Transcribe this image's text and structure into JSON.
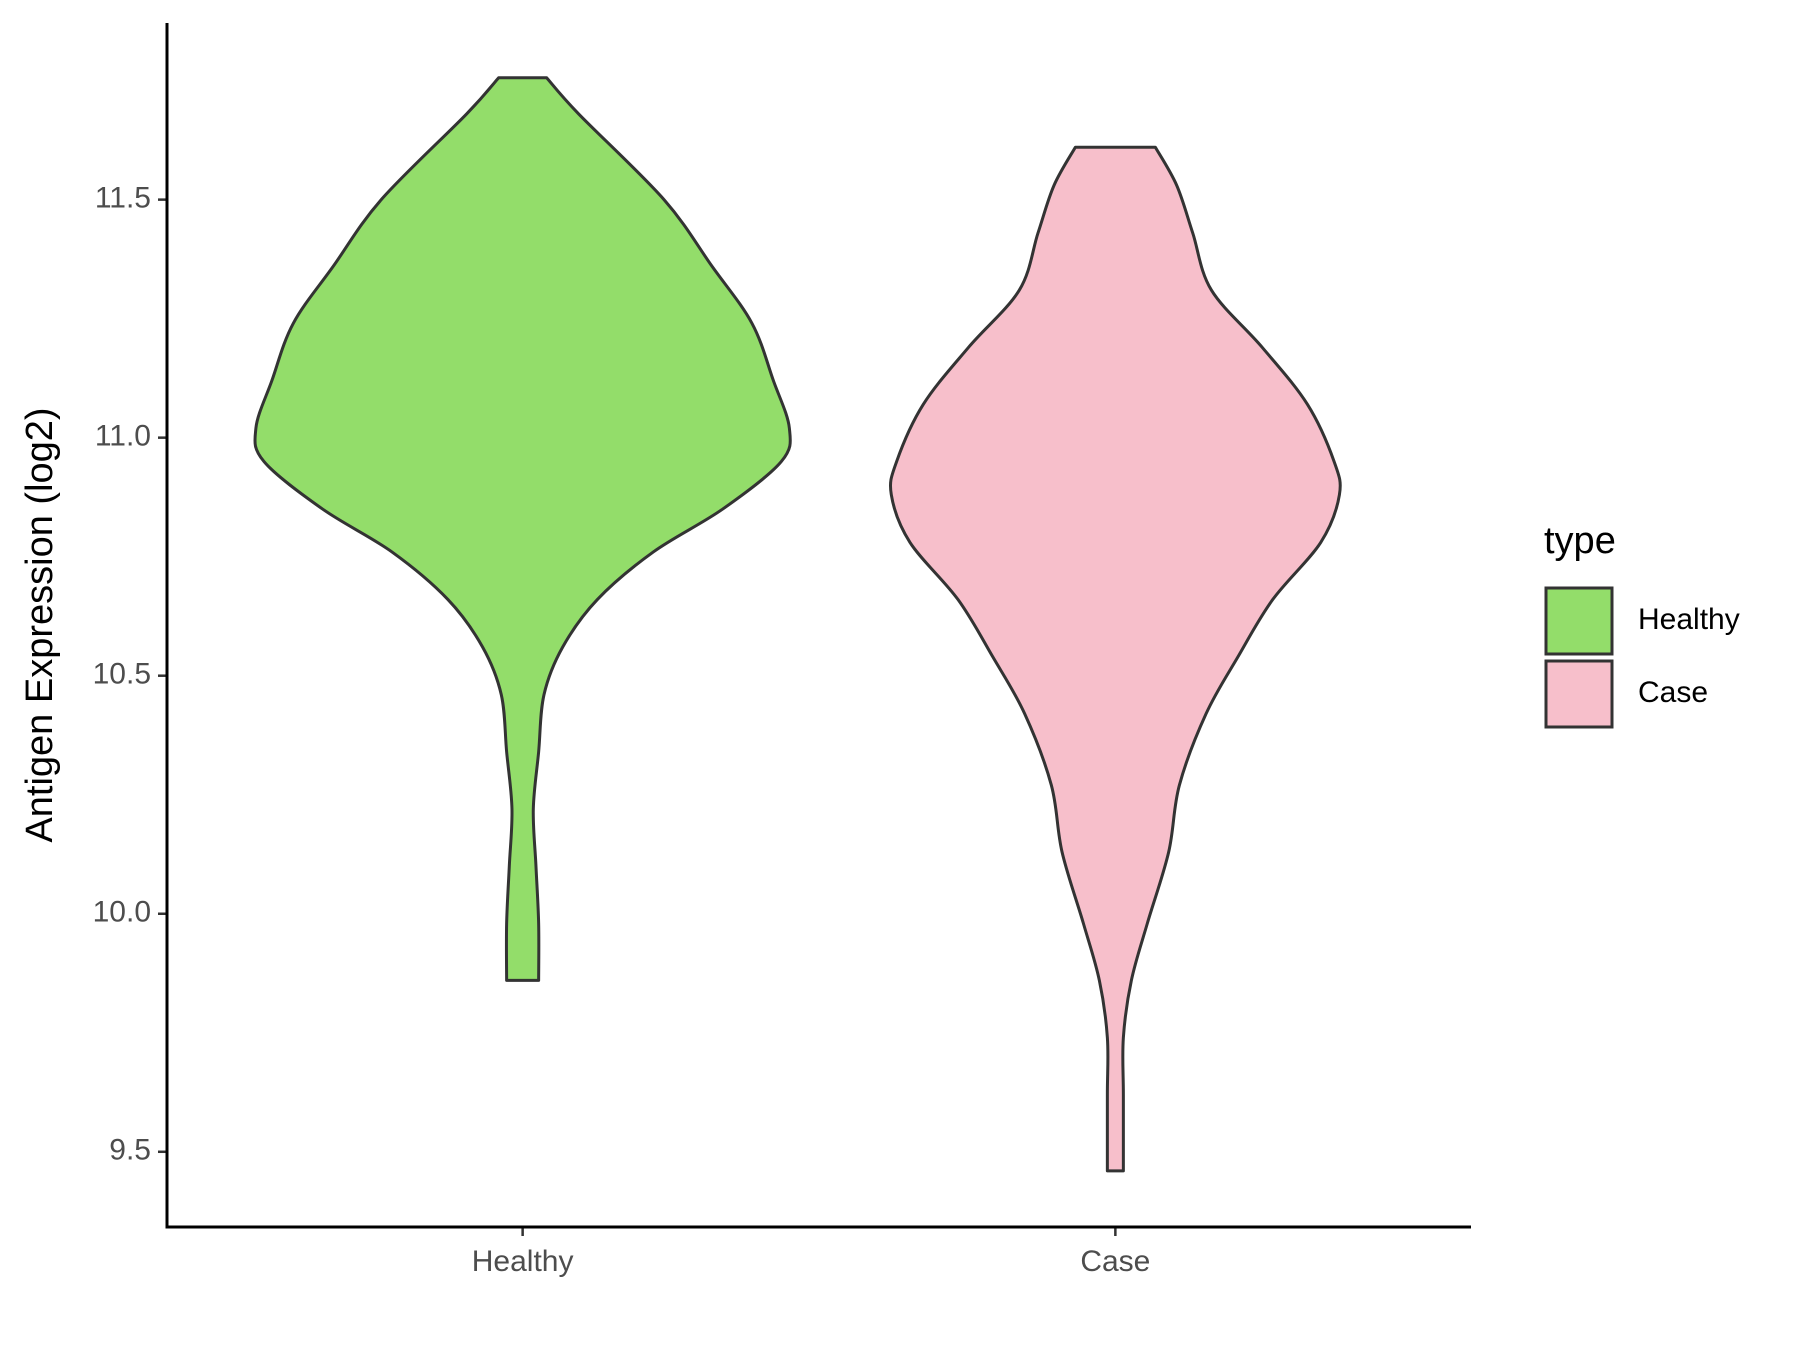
{
  "chart_data": {
    "type": "violin",
    "y_label": "Antigen Expression (log2)",
    "categories": [
      "Healthy",
      "Case"
    ],
    "legend_title": "type",
    "legend": "right",
    "series": [
      {
        "name": "Healthy",
        "color": "#93dd6a",
        "y": [
          11.756,
          11.68,
          11.5,
          11.36,
          11.24,
          11.12,
          11.02,
          10.95,
          10.85,
          10.76,
          10.66,
          10.56,
          10.46,
          10.34,
          10.22,
          10.1,
          9.98,
          9.86
        ],
        "density": [
          0.09,
          0.21,
          0.53,
          0.71,
          0.86,
          0.94,
          1.0,
          0.97,
          0.75,
          0.49,
          0.28,
          0.15,
          0.08,
          0.06,
          0.04,
          0.05,
          0.06,
          0.06
        ]
      },
      {
        "name": "Case",
        "color": "#f7bfcb",
        "y": [
          11.61,
          11.53,
          11.43,
          11.31,
          11.19,
          11.07,
          10.95,
          10.88,
          10.78,
          10.66,
          10.54,
          10.42,
          10.27,
          10.13,
          9.98,
          9.86,
          9.74,
          9.62,
          9.46
        ],
        "density": [
          0.15,
          0.23,
          0.29,
          0.36,
          0.55,
          0.72,
          0.82,
          0.84,
          0.77,
          0.59,
          0.46,
          0.34,
          0.24,
          0.2,
          0.12,
          0.06,
          0.03,
          0.03,
          0.03
        ]
      }
    ],
    "ylim": [
      9.342,
      11.871
    ],
    "yticks": [
      9.5,
      {
        "value": 10,
        "label": "10.0"
      },
      10.5,
      {
        "value": 11,
        "label": "11.0"
      },
      11.5
    ],
    "grid": false
  }
}
